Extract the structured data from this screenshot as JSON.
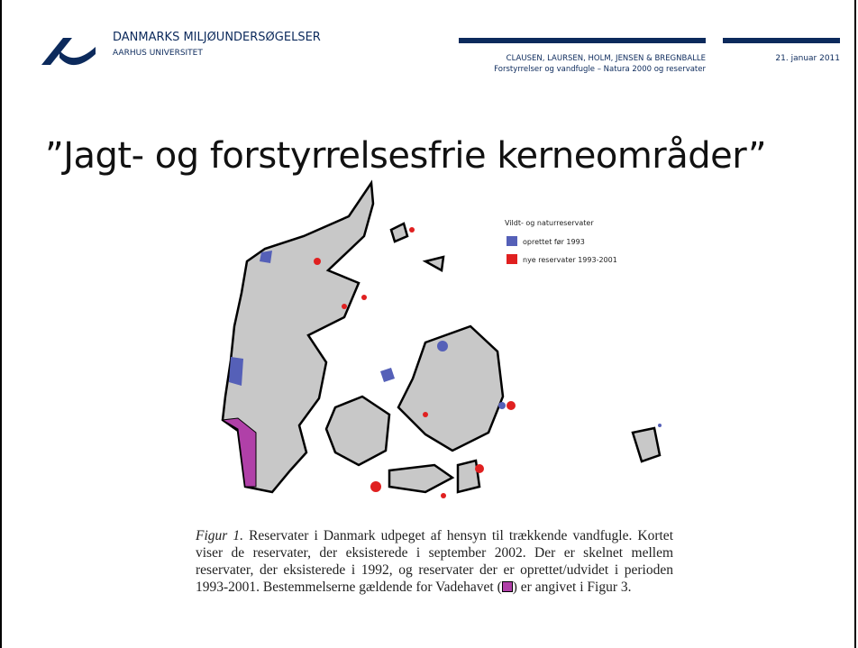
{
  "header": {
    "organization": "DANMARKS MILJØUNDERSØGELSER",
    "university": "AARHUS UNIVERSITET",
    "authors": "CLAUSEN, LAURSEN, HOLM, JENSEN & BREGNBALLE",
    "subtitle": "Forstyrrelser og vandfugle – Natura 2000 og reservater",
    "date": "21. januar 2011"
  },
  "slide": {
    "title": "”Jagt- og forstyrrelsesfrie kerneområder”"
  },
  "figure": {
    "legend": {
      "title": "Vildt- og naturreservater",
      "items": [
        "oprettet før 1993",
        "nye reservater 1993-2001"
      ]
    },
    "caption": {
      "label": "Figur 1.",
      "text": "Reservater i Danmark udpeget af hensyn til trækkende vandfugle. Kortet viser de reservater, der eksisterede i september 2002. Der er skelnet mellem reservater, der eksisterede i 1992, og reservater der er oprettet/udvidet i perioden 1993-2001. Bestemmelserne gældende for Vadehavet (",
      "text_end": ") er angivet i Figur 3."
    }
  }
}
